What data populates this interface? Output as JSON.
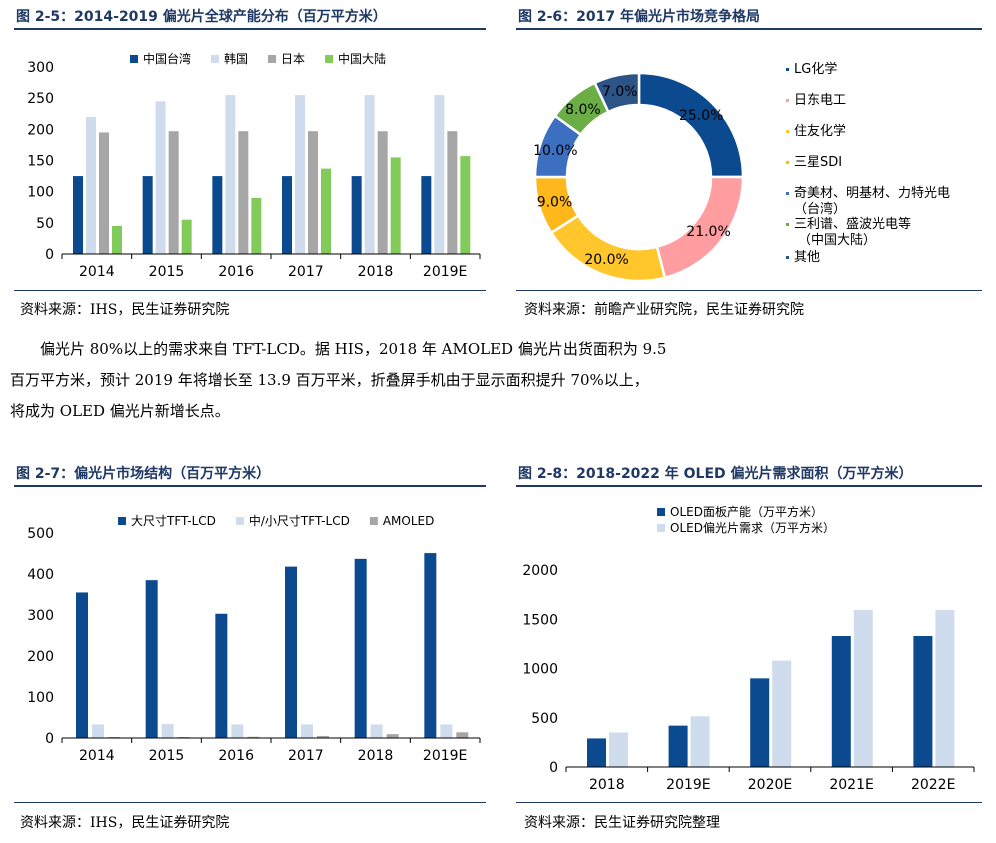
{
  "text": {
    "paragraph_lines": [
      "偏光片 80%以上的需求来自 TFT-LCD。据 HIS，2018 年 AMOLED 偏光片出货面积为 9.5",
      "百万平方米，预计 2019 年将增长至 13.9 百万平米，折叠屏手机由于显示面积提升 70%以上，",
      "将成为 OLED 偏光片新增长点。"
    ]
  },
  "chart_data": [
    {
      "type": "bar",
      "figure_label": "图 2-5：2014-2019 偏光片全球产能分布（百万平方米）",
      "source": "资料来源：IHS，民生证券研究院",
      "categories": [
        "2014",
        "2015",
        "2016",
        "2017",
        "2018",
        "2019E"
      ],
      "ylim": [
        0,
        300
      ],
      "yticks": [
        0,
        50,
        100,
        150,
        200,
        250,
        300
      ],
      "grid": false,
      "legend_position": "top",
      "series": [
        {
          "name": "中国台湾",
          "color": "#0b4a8f",
          "values": [
            125,
            125,
            125,
            125,
            125,
            125
          ]
        },
        {
          "name": "韩国",
          "color": "#cfdced",
          "values": [
            220,
            245,
            255,
            255,
            255,
            255
          ]
        },
        {
          "name": "日本",
          "color": "#a6a6a6",
          "values": [
            195,
            197,
            197,
            197,
            197,
            197
          ]
        },
        {
          "name": "中国大陆",
          "color": "#82cb5a",
          "values": [
            45,
            55,
            90,
            137,
            155,
            157
          ]
        }
      ]
    },
    {
      "type": "pie",
      "figure_label": "图 2-6：2017 年偏光片市场竞争格局",
      "source": "资料来源：前瞻产业研究院，民生证券研究院",
      "legend_position": "right",
      "slices": [
        {
          "name": "LG化学",
          "value": 25.0,
          "label": "25.0%",
          "color": "#0b4a8f"
        },
        {
          "name": "日东电工",
          "value": 21.0,
          "label": "21.0%",
          "color": "#ff9da0"
        },
        {
          "name": "住友化学",
          "value": 20.0,
          "label": "20.0%",
          "color": "#ffc72c"
        },
        {
          "name": "三星SDI",
          "value": 9.0,
          "label": "9.0%",
          "color": "#ffb81c"
        },
        {
          "name": "奇美材、明基材、力特光电（台湾）",
          "value": 10.0,
          "label": "10.0%",
          "color": "#3d6fc1"
        },
        {
          "name": "三利谱、盛波光电等（中国大陆）",
          "value": 8.0,
          "label": "8.0%",
          "color": "#6cae46"
        },
        {
          "name": "其他",
          "value": 7.0,
          "label": "7.0%",
          "color": "#2c5486"
        }
      ]
    },
    {
      "type": "bar",
      "figure_label": "图 2-7：偏光片市场结构（百万平方米）",
      "source": "资料来源：IHS，民生证券研究院",
      "categories": [
        "2014",
        "2015",
        "2016",
        "2017",
        "2018",
        "2019E"
      ],
      "ylim": [
        0,
        500
      ],
      "yticks": [
        0,
        100,
        200,
        300,
        400,
        500
      ],
      "grid": false,
      "legend_position": "top",
      "series": [
        {
          "name": "大尺寸TFT-LCD",
          "color": "#0b4a8f",
          "values": [
            355,
            385,
            303,
            418,
            437,
            451
          ]
        },
        {
          "name": "中/小尺寸TFT-LCD",
          "color": "#cfdced",
          "values": [
            33,
            34,
            33,
            33,
            33,
            33
          ]
        },
        {
          "name": "AMOLED",
          "color": "#a6a6a6",
          "values": [
            1,
            2,
            3,
            5,
            9.5,
            13.9
          ]
        }
      ]
    },
    {
      "type": "bar",
      "figure_label": "图 2-8：2018-2022 年 OLED 偏光片需求面积（万平方米）",
      "source": "资料来源：民生证券研究院整理",
      "categories": [
        "2018",
        "2019E",
        "2020E",
        "2021E",
        "2022E"
      ],
      "ylim": [
        0,
        2000
      ],
      "yticks": [
        0,
        500,
        1000,
        1500,
        2000
      ],
      "grid": false,
      "legend_position": "top",
      "series": [
        {
          "name": "OLED面板产能（万平方米）",
          "color": "#0b4a8f",
          "values": [
            290,
            420,
            900,
            1330,
            1330
          ]
        },
        {
          "name": "OLED偏光片需求（万平方米）",
          "color": "#cfdced",
          "values": [
            350,
            515,
            1080,
            1595,
            1595
          ]
        }
      ]
    }
  ]
}
